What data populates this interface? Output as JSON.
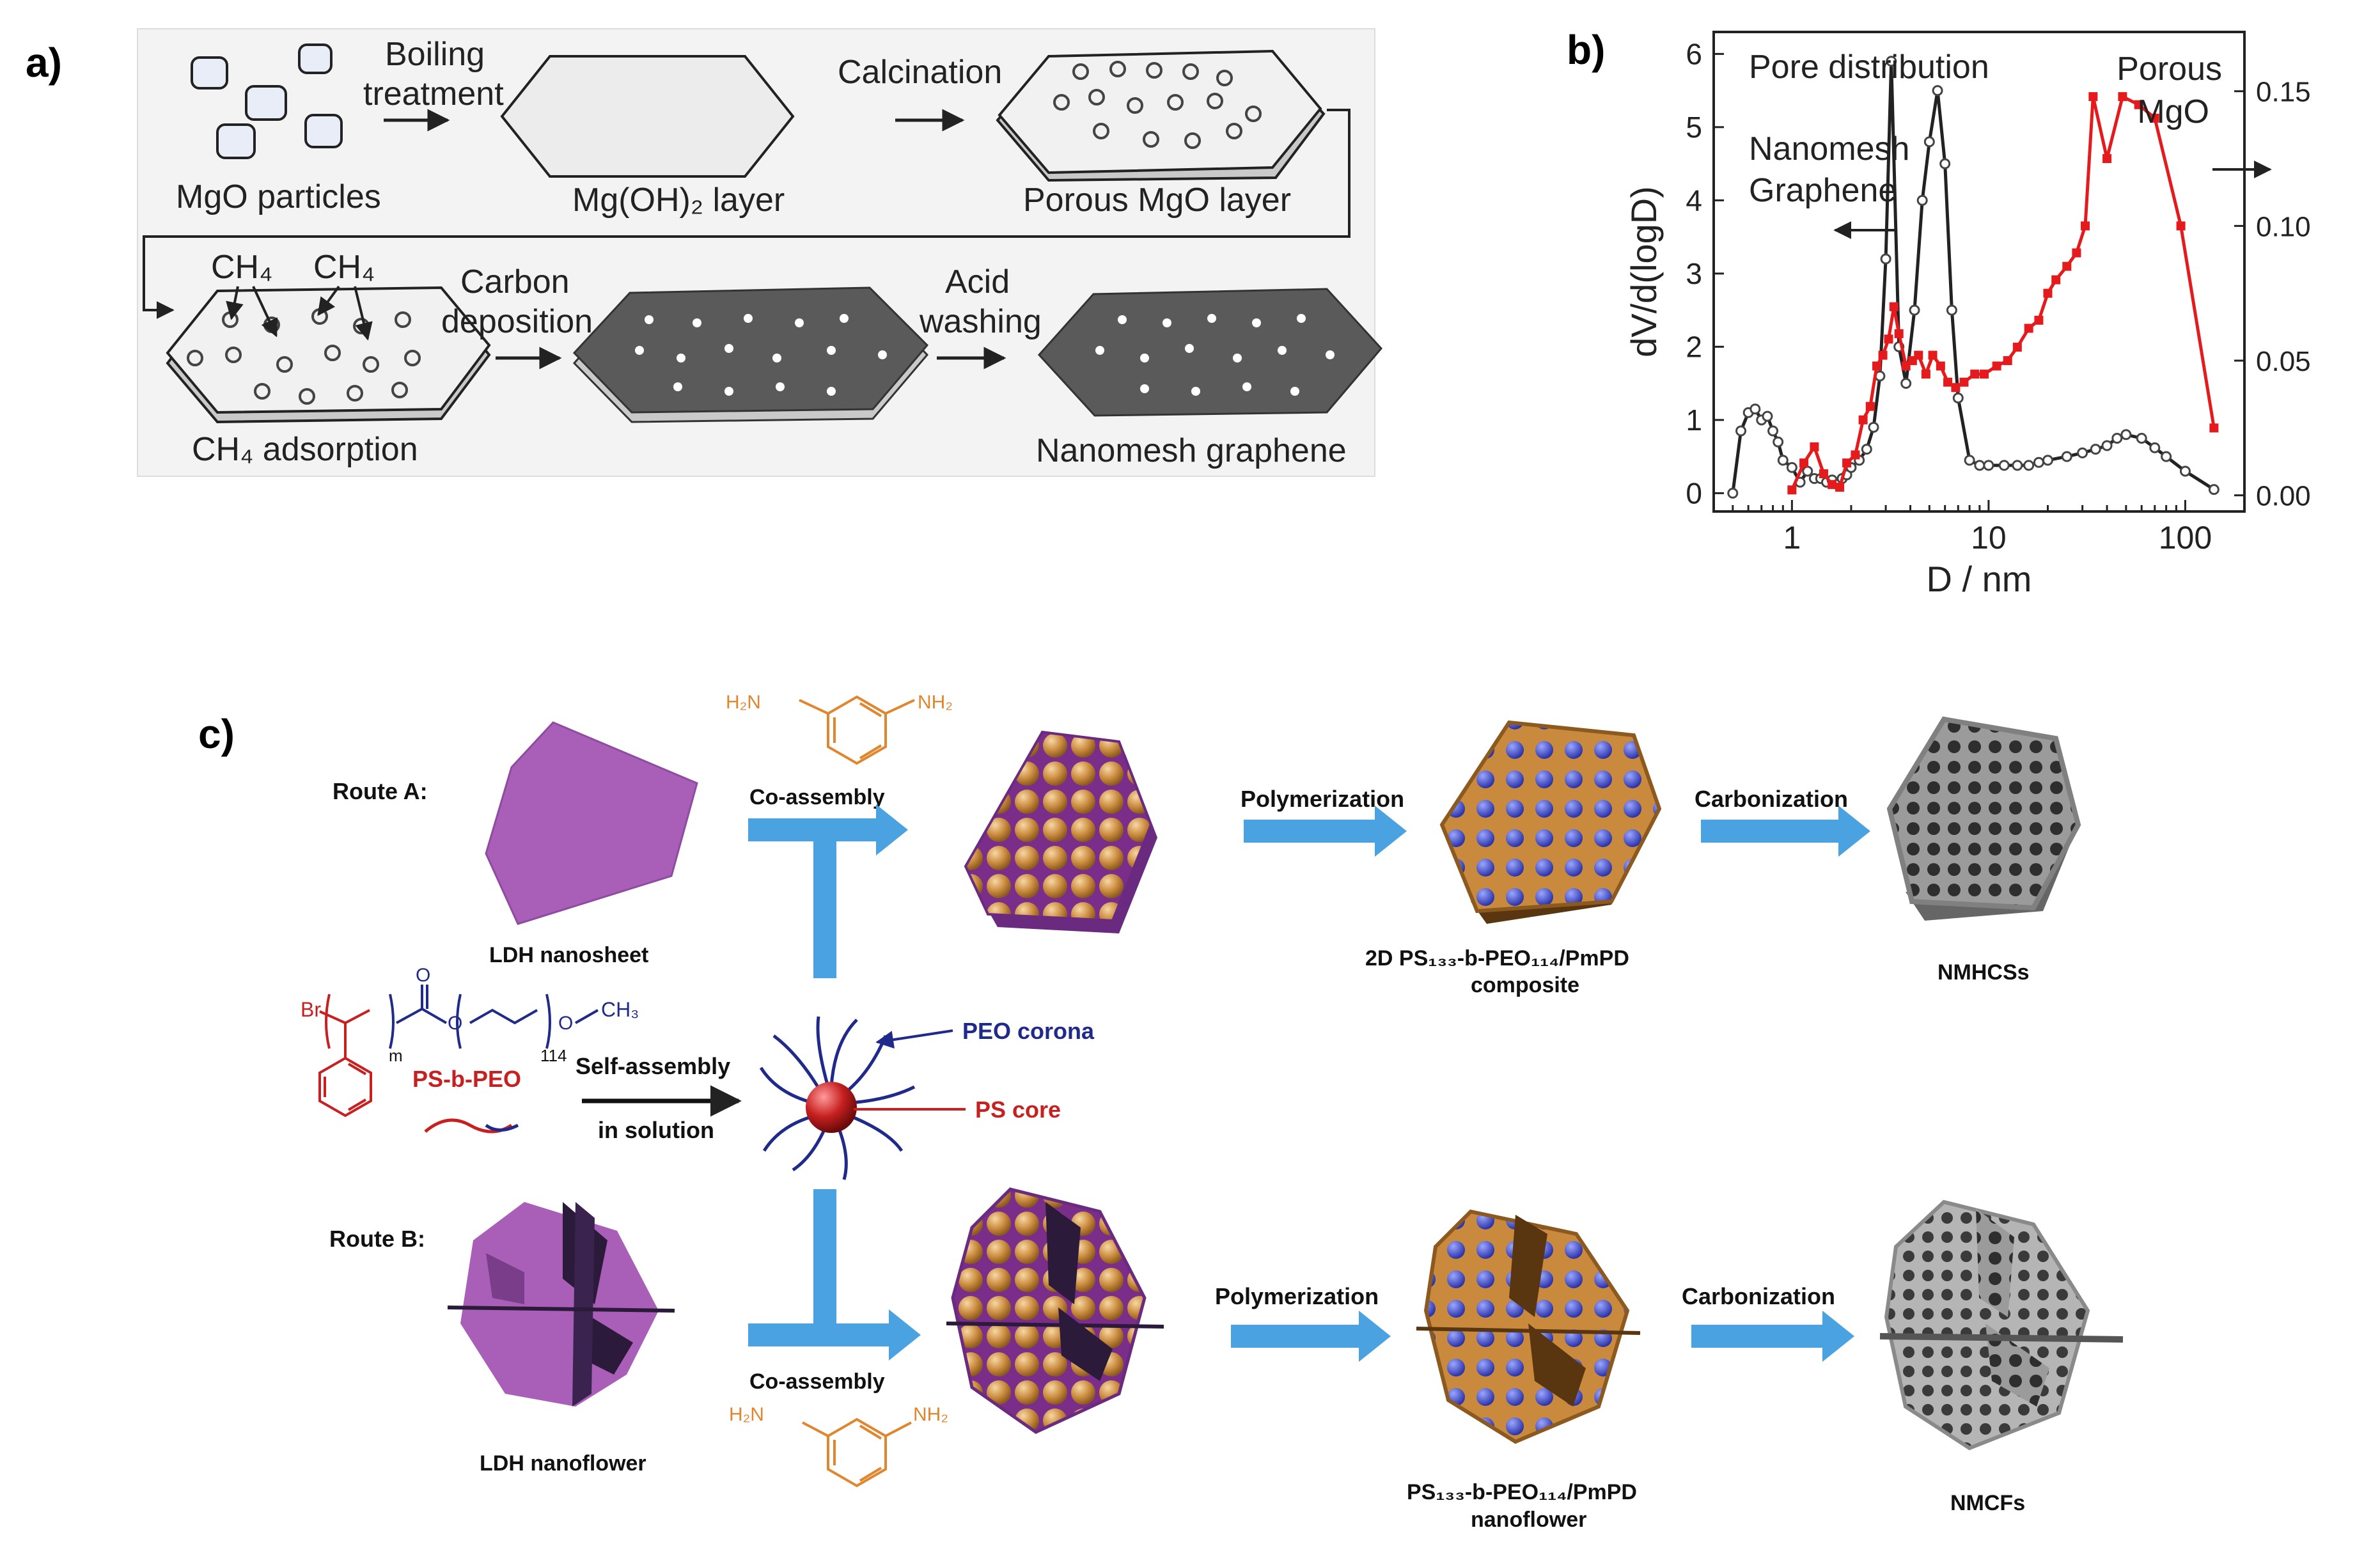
{
  "panel_a": {
    "label": "a)",
    "mgo_particles": "MgO particles",
    "boiling_1": "Boiling",
    "boiling_2": "treatment",
    "mgoh_layer": "Mg(OH)₂ layer",
    "calcination": "Calcination",
    "porous_layer": "Porous MgO layer",
    "ch4_left": "CH₄",
    "ch4_right": "CH₄",
    "carbon_1": "Carbon",
    "carbon_2": "deposition",
    "acid_1": "Acid",
    "acid_2": "washing",
    "ch4_adsorption": "CH₄ adsorption",
    "nanomesh": "Nanomesh graphene"
  },
  "panel_b": {
    "label": "b)",
    "pore_distribution": "Pore distribution",
    "nanomesh_1": "Nanomesh",
    "nanomesh_2": "Graphene",
    "porous_1": "Porous",
    "porous_2": "MgO",
    "colors": {
      "graphene": "#222222",
      "mgo": "#e41a1c"
    }
  },
  "chart_data": {
    "type": "line",
    "xlabel": "D / nm",
    "ylabel": "dV/d(logD)",
    "xscale": "log",
    "xlim": [
      0.4,
      200
    ],
    "ylim_left": [
      -0.25,
      6.3
    ],
    "ylim_right": [
      -0.006,
      0.172
    ],
    "x_ticks": [
      1,
      10,
      100
    ],
    "x_tick_labels": [
      "1",
      "10",
      "100"
    ],
    "y_left_ticks": [
      0,
      1,
      2,
      3,
      4,
      5,
      6
    ],
    "y_left_tick_labels": [
      "0",
      "1",
      "2",
      "3",
      "4",
      "5",
      "6"
    ],
    "y_right_ticks": [
      0,
      0.05,
      0.1,
      0.15
    ],
    "y_right_tick_labels": [
      "0.00",
      "0.05",
      "0.10",
      "0.15"
    ],
    "series": [
      {
        "name": "Nanomesh Graphene",
        "axis": "left",
        "x": [
          0.5,
          0.55,
          0.6,
          0.65,
          0.7,
          0.75,
          0.8,
          0.85,
          0.9,
          1.0,
          1.1,
          1.2,
          1.3,
          1.4,
          1.5,
          1.6,
          1.7,
          1.8,
          1.9,
          2.0,
          2.2,
          2.4,
          2.6,
          2.8,
          3.0,
          3.2,
          3.5,
          3.8,
          4.2,
          4.6,
          5.0,
          5.5,
          6.0,
          6.5,
          7.0,
          8.0,
          9.0,
          10,
          12,
          14,
          16,
          18,
          20,
          25,
          30,
          35,
          40,
          45,
          50,
          60,
          70,
          80,
          100,
          140
        ],
        "values": [
          0.0,
          0.85,
          1.1,
          1.15,
          1.0,
          1.05,
          0.85,
          0.7,
          0.45,
          0.35,
          0.15,
          0.3,
          0.2,
          0.2,
          0.15,
          0.18,
          0.12,
          0.2,
          0.25,
          0.35,
          0.45,
          0.6,
          0.9,
          1.6,
          3.2,
          5.9,
          2.0,
          1.5,
          2.5,
          4.0,
          4.8,
          5.5,
          4.5,
          2.5,
          1.3,
          0.45,
          0.38,
          0.38,
          0.38,
          0.38,
          0.38,
          0.42,
          0.45,
          0.5,
          0.55,
          0.6,
          0.65,
          0.75,
          0.8,
          0.75,
          0.62,
          0.5,
          0.3,
          0.05
        ]
      },
      {
        "name": "Porous MgO",
        "axis": "right",
        "x": [
          1.0,
          1.15,
          1.3,
          1.45,
          1.6,
          1.75,
          1.9,
          2.1,
          2.3,
          2.5,
          2.7,
          2.9,
          3.1,
          3.3,
          3.5,
          3.8,
          4.1,
          4.4,
          4.8,
          5.2,
          5.7,
          6.2,
          6.8,
          7.5,
          8.5,
          9.5,
          11,
          12.5,
          14,
          16,
          18,
          20,
          22,
          25,
          28,
          31,
          34,
          40,
          48,
          58,
          70,
          95,
          140
        ],
        "values": [
          0.002,
          0.012,
          0.018,
          0.008,
          0.004,
          0.003,
          0.012,
          0.015,
          0.028,
          0.033,
          0.048,
          0.052,
          0.058,
          0.07,
          0.06,
          0.048,
          0.05,
          0.052,
          0.045,
          0.052,
          0.048,
          0.042,
          0.04,
          0.042,
          0.045,
          0.045,
          0.048,
          0.05,
          0.055,
          0.062,
          0.065,
          0.075,
          0.08,
          0.085,
          0.09,
          0.1,
          0.148,
          0.125,
          0.148,
          0.145,
          0.14,
          0.1,
          0.025
        ]
      }
    ]
  },
  "panel_c": {
    "label": "c)",
    "route_a": "Route A:",
    "route_b": "Route B:",
    "nh2_left": "H₂N",
    "nh2_right": "NH₂",
    "nh2_left_b": "H₂N",
    "nh2_right_b": "NH₂",
    "co_assembly_a": "Co-assembly",
    "co_assembly_b": "Co-assembly",
    "ldh_nanosheet": "LDH nanosheet",
    "ldh_nanoflower": "LDH nanoflower",
    "polymerization_a": "Polymerization",
    "polymerization_b": "Polymerization",
    "carbonization_a": "Carbonization",
    "carbonization_b": "Carbonization",
    "composite_1": "2D PS₁₃₃-b-PEO₁₁₄/PmPD",
    "composite_2": "composite",
    "flower_1": "PS₁₃₃-b-PEO₁₁₄/PmPD",
    "flower_2": "nanoflower",
    "nmhcs": "NMHCSs",
    "nmcfs": "NMCFs",
    "br": "Br",
    "m_sub": "m",
    "n_sub": "114",
    "o_atom": "O",
    "o_chain_1": "O",
    "o_chain_2": "O",
    "ch3": "CH₃",
    "ps_peo": "PS-b-PEO",
    "self_assembly": "Self-assembly",
    "in_solution": "in solution",
    "peo_corona": "PEO corona",
    "ps_core": "PS core"
  }
}
